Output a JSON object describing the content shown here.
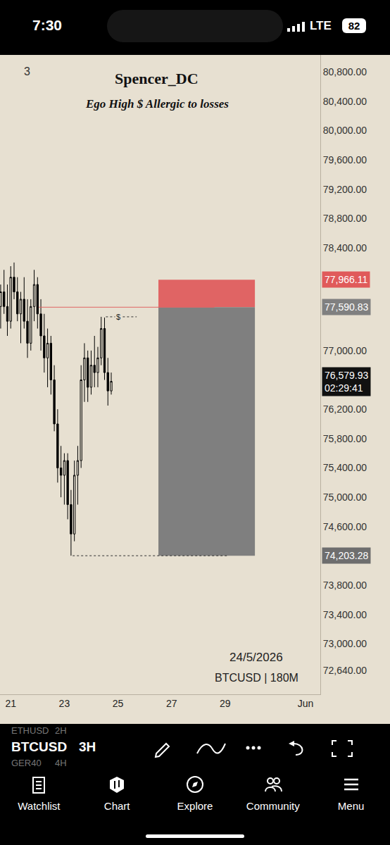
{
  "chart_data": {
    "type": "candlestick",
    "title": "Spencer_DC",
    "subtitle": "Ego High $ Allergic to losses",
    "object_count": 3,
    "color": "#000000",
    "grid": false,
    "x": [
      20.625,
      20.75,
      20.875,
      21.0,
      21.125,
      21.25,
      21.375,
      21.5,
      21.625,
      21.75,
      21.875,
      22.0,
      22.125,
      22.25,
      22.375,
      22.5,
      22.625,
      22.75,
      22.875,
      23.0,
      23.125,
      23.25,
      23.375,
      23.5,
      23.625,
      23.75,
      23.875,
      24.0,
      24.125,
      24.25,
      24.375,
      24.5,
      24.625,
      24.75
    ],
    "open": [
      77600,
      77800,
      77600,
      77400,
      78000,
      77800,
      77500,
      77700,
      77400,
      77100,
      77600,
      77900,
      77500,
      77200,
      76900,
      77100,
      76600,
      76000,
      75400,
      75300,
      75500,
      74900,
      74500,
      75300,
      75500,
      76600,
      76900,
      76500,
      76800,
      76700,
      76900,
      77300,
      76700,
      76450
    ],
    "high": [
      77900,
      78100,
      77900,
      78150,
      78200,
      78000,
      77800,
      78000,
      77700,
      77700,
      78100,
      78000,
      77700,
      77500,
      77300,
      77200,
      76800,
      76200,
      75700,
      75600,
      75600,
      75100,
      75500,
      75700,
      76800,
      77100,
      77000,
      77000,
      77200,
      77050,
      77460,
      77450,
      76900,
      76700
    ],
    "low": [
      77300,
      77500,
      77200,
      77300,
      77700,
      77400,
      77100,
      77300,
      76900,
      77000,
      77400,
      77300,
      77000,
      76700,
      76500,
      76400,
      75900,
      75200,
      75000,
      74900,
      74700,
      74203.28,
      74400,
      74900,
      75400,
      76300,
      76300,
      76400,
      76500,
      76500,
      76800,
      76600,
      76250,
      76400
    ],
    "close": [
      77800,
      77600,
      77400,
      78000,
      77800,
      77500,
      77700,
      77400,
      77100,
      77600,
      77900,
      77500,
      77200,
      76900,
      77100,
      76600,
      76000,
      75400,
      75300,
      75500,
      74900,
      74500,
      75300,
      75500,
      76600,
      76900,
      76500,
      76800,
      76700,
      76900,
      77300,
      76700,
      76450,
      76579.93
    ],
    "xlim": [
      20.6,
      32.55
    ],
    "xticks": [
      21,
      23,
      25,
      27,
      29,
      {
        "value": 32,
        "label": "Jun"
      }
    ],
    "ylim": [
      72314,
      81030
    ],
    "yticks": [
      {
        "value": 80800,
        "label": "80,800.00"
      },
      {
        "value": 80400,
        "label": "80,400.00"
      },
      {
        "value": 80000,
        "label": "80,000.00"
      },
      {
        "value": 79600,
        "label": "79,600.00"
      },
      {
        "value": 79200,
        "label": "79,200.00"
      },
      {
        "value": 78800,
        "label": "78,800.00"
      },
      {
        "value": 78400,
        "label": "78,400.00"
      },
      {
        "value": 77000,
        "label": "77,000.00"
      },
      {
        "value": 76200,
        "label": "76,200.00"
      },
      {
        "value": 75800,
        "label": "75,800.00"
      },
      {
        "value": 75400,
        "label": "75,400.00"
      },
      {
        "value": 75000,
        "label": "75,000.00"
      },
      {
        "value": 74600,
        "label": "74,600.00"
      },
      {
        "value": 73800,
        "label": "73,800.00"
      },
      {
        "value": 73400,
        "label": "73,400.00"
      },
      {
        "value": 73000,
        "label": "73,000.00"
      },
      {
        "value": 72640,
        "label": "72,640.00"
      }
    ],
    "position": {
      "type": "short",
      "x": [
        26.51,
        30.11
      ],
      "entry": 77590.83,
      "stop": 77966.11,
      "target": 74203.28,
      "stop_color": "#e06464",
      "target_color": "#7f7f7f"
    },
    "levels": [
      {
        "price": 77590.83,
        "x": [
          22.05,
          28.6
        ],
        "color": "#e06464",
        "line_style": "solid"
      },
      {
        "price": 74203.28,
        "x": [
          23.31,
          29.14
        ],
        "color": "#333333",
        "line_style": "dot"
      },
      {
        "price": 77460,
        "x": [
          24.55,
          25.7
        ],
        "color": "#333333",
        "line_style": "dot"
      }
    ],
    "level_note": {
      "text": "$",
      "x": 25.0,
      "price": 77460
    },
    "price_tags": [
      {
        "value": 77966.11,
        "label": "77,966.11",
        "color": "#e05a5a"
      },
      {
        "value": 77590.83,
        "label": "77,590.83",
        "color": "#808080"
      },
      {
        "value": 76579.93,
        "label": "76,579.93",
        "countdown": "02:29:41",
        "color": "#111111"
      },
      {
        "value": 74203.28,
        "label": "74,203.28",
        "color": "#6e6e6e"
      }
    ],
    "watermark": [
      "24/5/2026",
      "BTCUSD | 180M"
    ]
  },
  "screen": {
    "status_bar": {
      "time": "7:30",
      "network": "LTE",
      "battery": 82
    },
    "symbol_picker": [
      {
        "symbol": "ETHUSD",
        "interval": "2H"
      },
      {
        "symbol": "BTCUSD",
        "interval": "3H"
      },
      {
        "symbol": "GER40",
        "interval": "4H"
      }
    ],
    "nav": [
      "Watchlist",
      "Chart",
      "Explore",
      "Community",
      "Menu"
    ]
  }
}
